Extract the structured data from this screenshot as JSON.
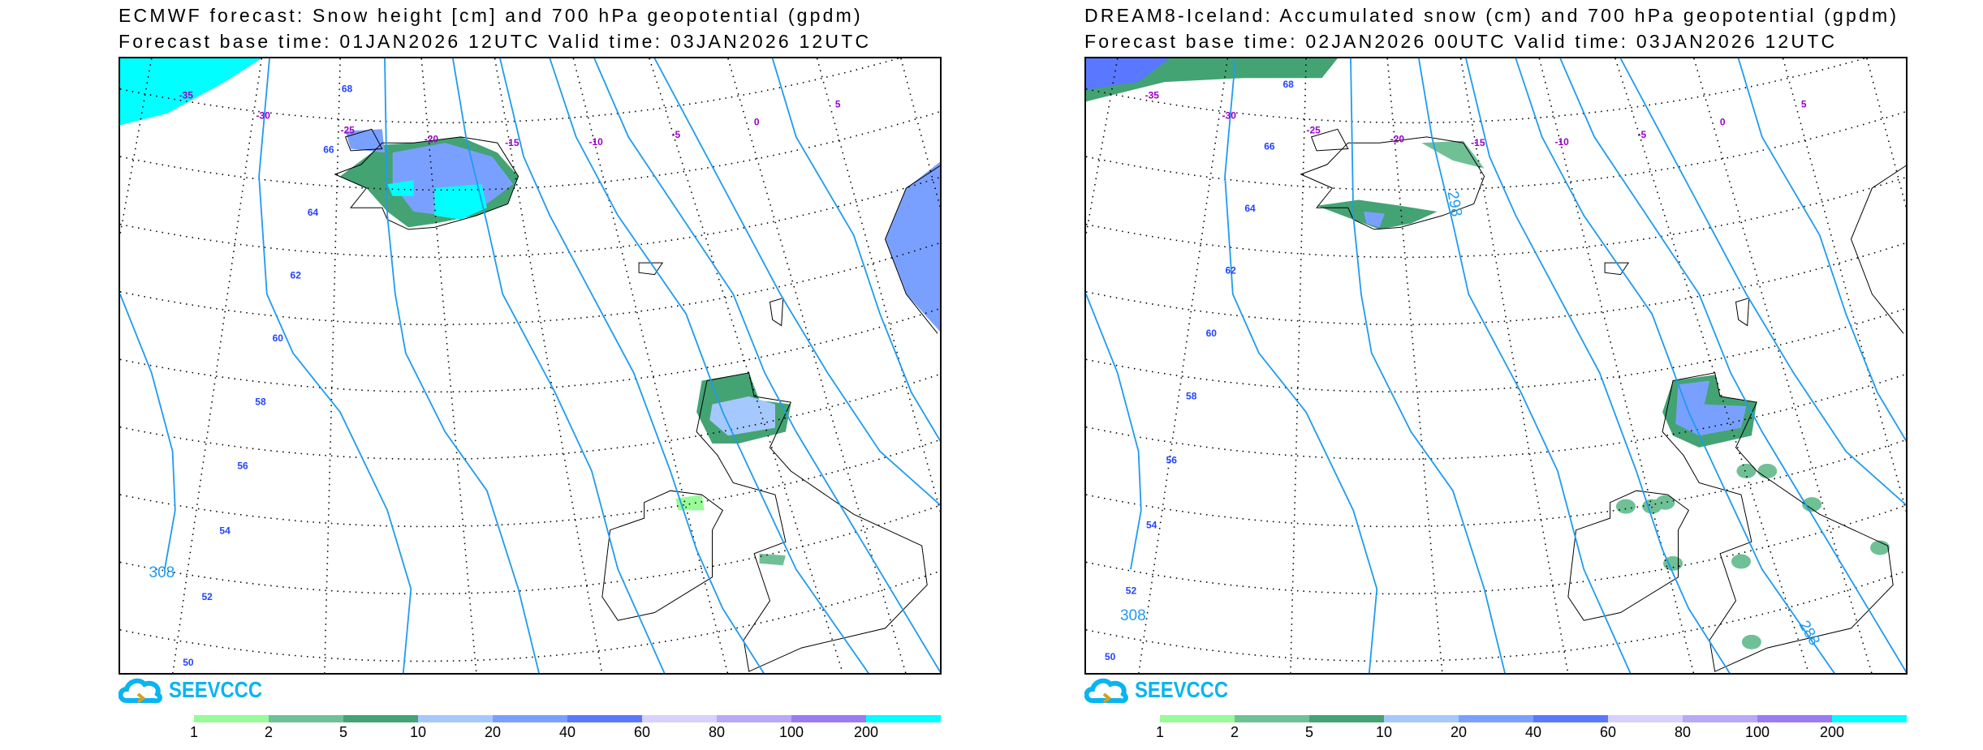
{
  "panels": [
    {
      "id": "ecmwf",
      "title_line1": "ECMWF forecast: Snow height [cm] and 700 hPa geopotential (gpdm)",
      "title_line2": "Forecast base time: 01JAN2026 12UTC    Valid time: 03JAN2026 12UTC",
      "contour_labels": [
        "308"
      ],
      "lat_labels": [
        "68",
        "66",
        "64",
        "62",
        "60",
        "58",
        "56",
        "54",
        "52",
        "50"
      ],
      "lon_labels": [
        "-35",
        "-30",
        "-25",
        "-20",
        "-15",
        "-10",
        "-5",
        "0",
        "5"
      ]
    },
    {
      "id": "dream8",
      "title_line1": "DREAM8-Iceland: Accumulated snow (cm) and 700 hPa geopotential (gpdm)",
      "title_line2": "Forecast base time: 02JAN2026 00UTC    Valid time: 03JAN2026 12UTC",
      "contour_labels": [
        "308",
        "298",
        "288"
      ],
      "lat_labels": [
        "68",
        "66",
        "64",
        "62",
        "60",
        "58",
        "56",
        "54",
        "52",
        "50"
      ],
      "lon_labels": [
        "-35",
        "-30",
        "-25",
        "-20",
        "-15",
        "-10",
        "-5",
        "0",
        "5"
      ]
    }
  ],
  "logo_text": "SEEVCCC",
  "colorbar": {
    "labels": [
      "1",
      "2",
      "5",
      "10",
      "20",
      "40",
      "60",
      "80",
      "100",
      "200"
    ],
    "colors": [
      "#98fb98",
      "#70c096",
      "#44a373",
      "#a5c8ff",
      "#7aa0ff",
      "#5a78ff",
      "#d8d0ff",
      "#b8a8f5",
      "#9a7cf0",
      "#00ffff"
    ]
  },
  "colors": {
    "contour": "#1e9bf0",
    "lat_label": "#2244ff",
    "lon_label": "#9900cc"
  },
  "chart_data": {
    "type": "heatmap",
    "title": [
      "ECMWF forecast: Snow height [cm] and 700 hPa geopotential (gpdm)",
      "DREAM8-Iceland: Accumulated snow (cm) and 700 hPa geopotential (gpdm)"
    ],
    "colorbar_levels_cm": [
      1,
      2,
      5,
      10,
      20,
      40,
      60,
      80,
      100,
      200
    ],
    "contour_levels_gpdm": [
      288,
      298,
      308
    ],
    "lat_range": [
      50,
      68
    ],
    "lon_range": [
      -35,
      5
    ]
  }
}
